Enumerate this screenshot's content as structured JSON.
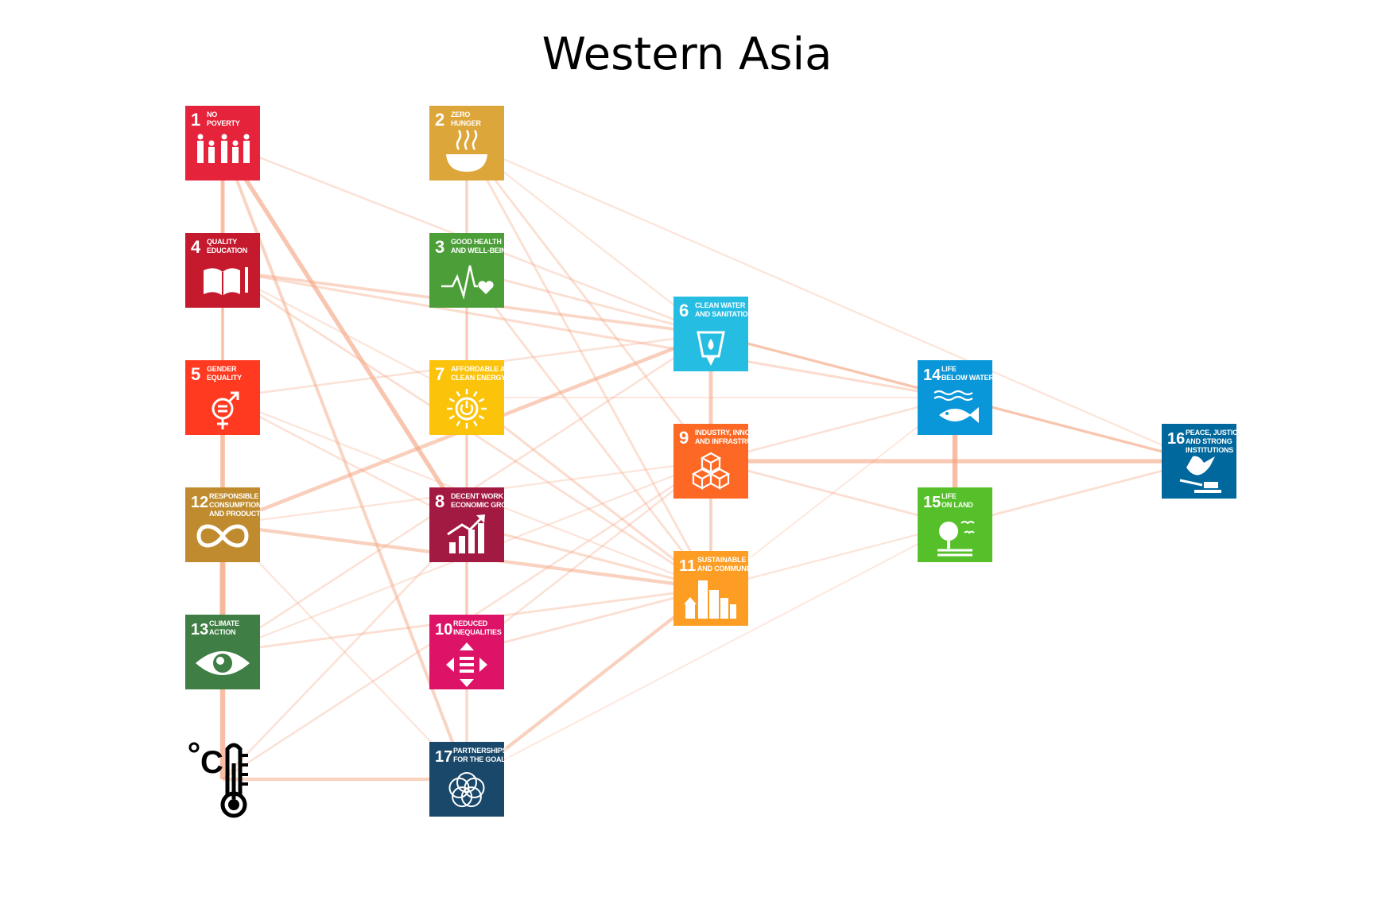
{
  "title": "Western Asia",
  "colors": {
    "edge": "#f4a582",
    "sdg1": "#e5243b",
    "sdg2": "#dda63a",
    "sdg3": "#4c9f38",
    "sdg4": "#c5192d",
    "sdg5": "#ff3a21",
    "sdg6": "#26bde2",
    "sdg7": "#fcc30b",
    "sdg8": "#a21942",
    "sdg9": "#fd6925",
    "sdg10": "#dd1367",
    "sdg11": "#fd9d24",
    "sdg12": "#bf8b2e",
    "sdg13": "#3f7e44",
    "sdg14": "#0a97d9",
    "sdg15": "#56c02b",
    "sdg16": "#00689d",
    "sdg17": "#19486a"
  },
  "nodes": [
    {
      "id": "1",
      "number": "1",
      "lines": [
        "NO",
        "POVERTY"
      ],
      "icon": "family-icon",
      "col": 0,
      "row": 0
    },
    {
      "id": "4",
      "number": "4",
      "lines": [
        "QUALITY",
        "EDUCATION"
      ],
      "icon": "book-icon",
      "col": 0,
      "row": 1
    },
    {
      "id": "5",
      "number": "5",
      "lines": [
        "GENDER",
        "EQUALITY"
      ],
      "icon": "gender-icon",
      "col": 0,
      "row": 2
    },
    {
      "id": "12",
      "number": "12",
      "lines": [
        "RESPONSIBLE",
        "CONSUMPTION",
        "AND PRODUCTION"
      ],
      "icon": "infinity-icon",
      "col": 0,
      "row": 3
    },
    {
      "id": "13",
      "number": "13",
      "lines": [
        "CLIMATE",
        "ACTION"
      ],
      "icon": "eye-globe-icon",
      "col": 0,
      "row": 4
    },
    {
      "id": "temp",
      "number": "",
      "lines": [],
      "icon": "thermometer-icon",
      "col": 0,
      "row": 5
    },
    {
      "id": "2",
      "number": "2",
      "lines": [
        "ZERO",
        "HUNGER"
      ],
      "icon": "bowl-icon",
      "col": 1,
      "row": 0
    },
    {
      "id": "3",
      "number": "3",
      "lines": [
        "GOOD HEALTH",
        "AND WELL-BEING"
      ],
      "icon": "heartbeat-icon",
      "col": 1,
      "row": 1
    },
    {
      "id": "7",
      "number": "7",
      "lines": [
        "AFFORDABLE AND",
        "CLEAN ENERGY"
      ],
      "icon": "sun-power-icon",
      "col": 1,
      "row": 2
    },
    {
      "id": "8",
      "number": "8",
      "lines": [
        "DECENT WORK AND",
        "ECONOMIC GROWTH"
      ],
      "icon": "growth-chart-icon",
      "col": 1,
      "row": 3
    },
    {
      "id": "10",
      "number": "10",
      "lines": [
        "REDUCED",
        "INEQUALITIES"
      ],
      "icon": "equal-arrows-icon",
      "col": 1,
      "row": 4
    },
    {
      "id": "17",
      "number": "17",
      "lines": [
        "PARTNERSHIPS",
        "FOR THE GOALS"
      ],
      "icon": "flower-rings-icon",
      "col": 1,
      "row": 5
    },
    {
      "id": "6",
      "number": "6",
      "lines": [
        "CLEAN WATER",
        "AND SANITATION"
      ],
      "icon": "water-glass-icon",
      "col": 2,
      "row": 1.5
    },
    {
      "id": "9",
      "number": "9",
      "lines": [
        "INDUSTRY, INNOVATION",
        "AND INFRASTRUCTURE"
      ],
      "icon": "cubes-icon",
      "col": 2,
      "row": 2.5
    },
    {
      "id": "11",
      "number": "11",
      "lines": [
        "SUSTAINABLE CITIES",
        "AND COMMUNITIES"
      ],
      "icon": "city-icon",
      "col": 2,
      "row": 3.5
    },
    {
      "id": "14",
      "number": "14",
      "lines": [
        "LIFE",
        "BELOW WATER"
      ],
      "icon": "fish-icon",
      "col": 3,
      "row": 2
    },
    {
      "id": "15",
      "number": "15",
      "lines": [
        "LIFE",
        "ON LAND"
      ],
      "icon": "tree-icon",
      "col": 3,
      "row": 3
    },
    {
      "id": "16",
      "number": "16",
      "lines": [
        "PEACE, JUSTICE",
        "AND STRONG",
        "INSTITUTIONS"
      ],
      "icon": "dove-gavel-icon",
      "col": 4,
      "row": 2.5
    }
  ],
  "edges": [
    {
      "source": "1",
      "target": "4",
      "weight": 0.7
    },
    {
      "source": "4",
      "target": "5",
      "weight": 0.5
    },
    {
      "source": "5",
      "target": "12",
      "weight": 0.8
    },
    {
      "source": "12",
      "target": "13",
      "weight": 1.0
    },
    {
      "source": "13",
      "target": "temp",
      "weight": 0.9
    },
    {
      "source": "2",
      "target": "3",
      "weight": 0.45
    },
    {
      "source": "3",
      "target": "7",
      "weight": 0.4
    },
    {
      "source": "7",
      "target": "8",
      "weight": 0.4
    },
    {
      "source": "8",
      "target": "10",
      "weight": 0.45
    },
    {
      "source": "10",
      "target": "17",
      "weight": 0.4
    },
    {
      "source": "6",
      "target": "9",
      "weight": 0.65
    },
    {
      "source": "9",
      "target": "11",
      "weight": 0.5
    },
    {
      "source": "14",
      "target": "15",
      "weight": 0.9
    },
    {
      "source": "9",
      "target": "16",
      "weight": 0.7
    },
    {
      "source": "1",
      "target": "8",
      "weight": 0.75
    },
    {
      "source": "1",
      "target": "17",
      "weight": 0.5
    },
    {
      "source": "12",
      "target": "6",
      "weight": 0.6
    },
    {
      "source": "temp",
      "target": "17",
      "weight": 0.55
    },
    {
      "source": "17",
      "target": "11",
      "weight": 0.55
    },
    {
      "source": "12",
      "target": "11",
      "weight": 0.55
    },
    {
      "source": "4",
      "target": "6",
      "weight": 0.45
    },
    {
      "source": "4",
      "target": "14",
      "weight": 0.35
    },
    {
      "source": "6",
      "target": "14",
      "weight": 0.4
    },
    {
      "source": "6",
      "target": "16",
      "weight": 0.35
    },
    {
      "source": "14",
      "target": "16",
      "weight": 0.4
    },
    {
      "source": "15",
      "target": "16",
      "weight": 0.3
    },
    {
      "source": "2",
      "target": "16",
      "weight": 0.2
    },
    {
      "source": "2",
      "target": "11",
      "weight": 0.3
    },
    {
      "source": "2",
      "target": "9",
      "weight": 0.3
    },
    {
      "source": "3",
      "target": "6",
      "weight": 0.3
    },
    {
      "source": "3",
      "target": "11",
      "weight": 0.3
    },
    {
      "source": "4",
      "target": "11",
      "weight": 0.3
    },
    {
      "source": "7",
      "target": "11",
      "weight": 0.35
    },
    {
      "source": "8",
      "target": "11",
      "weight": 0.35
    },
    {
      "source": "10",
      "target": "11",
      "weight": 0.3
    },
    {
      "source": "13",
      "target": "11",
      "weight": 0.3
    },
    {
      "source": "13",
      "target": "6",
      "weight": 0.25
    },
    {
      "source": "5",
      "target": "6",
      "weight": 0.25
    },
    {
      "source": "5",
      "target": "8",
      "weight": 0.25
    },
    {
      "source": "5",
      "target": "11",
      "weight": 0.2
    },
    {
      "source": "temp",
      "target": "8",
      "weight": 0.25
    },
    {
      "source": "temp",
      "target": "9",
      "weight": 0.25
    },
    {
      "source": "1",
      "target": "6",
      "weight": 0.25
    },
    {
      "source": "1",
      "target": "13",
      "weight": 0.15
    },
    {
      "source": "12",
      "target": "9",
      "weight": 0.2
    },
    {
      "source": "9",
      "target": "14",
      "weight": 0.25
    },
    {
      "source": "9",
      "target": "15",
      "weight": 0.3
    },
    {
      "source": "11",
      "target": "15",
      "weight": 0.2
    },
    {
      "source": "11",
      "target": "14",
      "weight": 0.15
    },
    {
      "source": "17",
      "target": "15",
      "weight": 0.15
    },
    {
      "source": "10",
      "target": "9",
      "weight": 0.25
    },
    {
      "source": "4",
      "target": "7",
      "weight": 0.2
    },
    {
      "source": "3",
      "target": "10",
      "weight": 0.2
    },
    {
      "source": "2",
      "target": "6",
      "weight": 0.2
    },
    {
      "source": "12",
      "target": "17",
      "weight": 0.2
    },
    {
      "source": "7",
      "target": "14",
      "weight": 0.15
    },
    {
      "source": "13",
      "target": "9",
      "weight": 0.2
    },
    {
      "source": "1",
      "target": "5",
      "weight": 0.2
    }
  ]
}
